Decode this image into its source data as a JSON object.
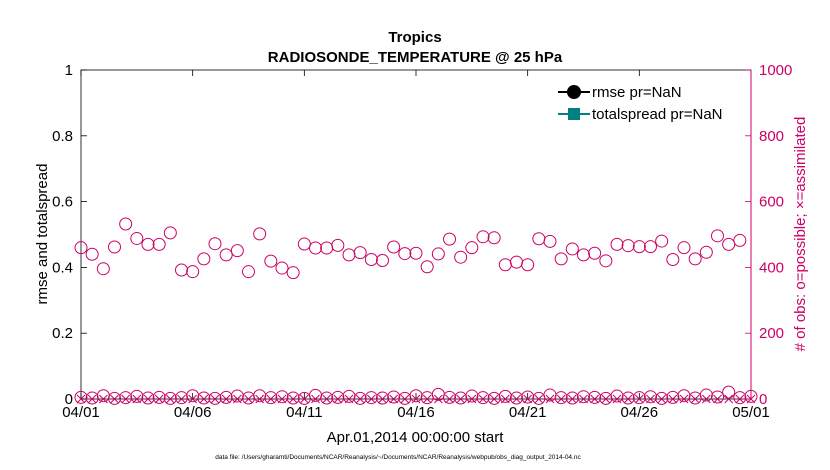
{
  "chart_data": {
    "type": "scatter",
    "title": "Tropics",
    "subtitle": "RADIOSONDE_TEMPERATURE @ 25 hPa",
    "xlabel": "Apr.01,2014 00:00:00 start",
    "ylabel_left": "rmse and totalspread",
    "ylabel_right": "# of obs: o=possible; ×=assimilated",
    "xlim": [
      0,
      30
    ],
    "ylim_left": [
      0,
      1
    ],
    "ylim_right": [
      0,
      1000
    ],
    "x_tick_values": [
      0,
      5,
      10,
      15,
      20,
      25,
      30
    ],
    "x_tick_labels": [
      "04/01",
      "04/06",
      "04/11",
      "04/16",
      "04/21",
      "04/26",
      "05/01"
    ],
    "y_left_ticks": [
      "0",
      "0.2",
      "0.4",
      "0.6",
      "0.8",
      "1"
    ],
    "y_right_ticks": [
      "0",
      "200",
      "400",
      "600",
      "800",
      "1000"
    ],
    "legend": {
      "position": "top-right",
      "entries": [
        "rmse pr=NaN",
        "totalspread pr=NaN"
      ]
    },
    "series": [
      {
        "name": "rmse pr=NaN",
        "axis": "left",
        "style": "line-circle",
        "color": "#000000",
        "values": []
      },
      {
        "name": "totalspread pr=NaN",
        "axis": "left",
        "style": "line-square",
        "color": "#008080",
        "values": []
      },
      {
        "name": "possible obs",
        "axis": "right",
        "style": "open-circle",
        "color": "#cc0066",
        "times": [
          0,
          0.5,
          1,
          1.5,
          2,
          2.5,
          3,
          3.5,
          4,
          4.5,
          5,
          5.5,
          6,
          6.5,
          7,
          7.5,
          8,
          8.5,
          9,
          9.5,
          10,
          10.5,
          11,
          11.5,
          12,
          12.5,
          13,
          13.5,
          14,
          14.5,
          15,
          15.5,
          16,
          16.5,
          17,
          17.5,
          18,
          18.5,
          19,
          19.5,
          20,
          20.5,
          21,
          21.5,
          22,
          22.5,
          23,
          23.5,
          24,
          24.5,
          25,
          25.5,
          26,
          26.5,
          27,
          27.5,
          28,
          28.5,
          29,
          29.5
        ],
        "values": [
          460,
          440,
          396,
          462,
          532,
          488,
          470,
          470,
          505,
          392,
          387,
          426,
          472,
          438,
          451,
          387,
          502,
          419,
          398,
          384,
          471,
          459,
          459,
          467,
          438,
          445,
          424,
          421,
          462,
          442,
          443,
          402,
          441,
          486,
          431,
          460,
          493,
          490,
          408,
          416,
          408,
          487,
          479,
          426,
          456,
          438,
          443,
          420,
          470,
          466,
          463,
          463,
          480,
          424,
          460,
          426,
          446,
          496,
          470,
          482
        ],
        "near_zero_times": [
          0,
          0.5,
          1,
          1.5,
          2,
          2.5,
          3,
          3.5,
          4,
          4.5,
          5,
          5.5,
          6,
          6.5,
          7,
          7.5,
          8,
          8.5,
          9,
          9.5,
          10,
          10.5,
          11,
          11.5,
          12,
          12.5,
          13,
          13.5,
          14,
          14.5,
          15,
          15.5,
          16,
          16.5,
          17,
          17.5,
          18,
          18.5,
          19,
          19.5,
          20,
          20.5,
          21,
          21.5,
          22,
          22.5,
          23,
          23.5,
          24,
          24.5,
          25,
          25.5,
          26,
          26.5,
          27,
          27.5,
          28,
          28.5,
          29,
          29.5,
          30
        ],
        "near_zero_values": [
          5,
          3,
          10,
          2,
          4,
          8,
          3,
          5,
          2,
          4,
          10,
          3,
          2,
          5,
          9,
          3,
          10,
          4,
          7,
          3,
          2,
          11,
          3,
          5,
          8,
          2,
          4,
          3,
          6,
          2,
          10,
          4,
          14,
          5,
          3,
          9,
          4,
          2,
          8,
          3,
          6,
          2,
          12,
          4,
          3,
          7,
          5,
          2,
          9,
          3,
          4,
          7,
          2,
          5,
          10,
          3,
          12,
          6,
          21,
          4,
          8
        ]
      },
      {
        "name": "assimilated obs",
        "axis": "right",
        "style": "cross",
        "color": "#cc0066",
        "times": [
          0,
          0.5,
          1,
          1.5,
          2,
          2.5,
          3,
          3.5,
          4,
          4.5,
          5,
          5.5,
          6,
          6.5,
          7,
          7.5,
          8,
          8.5,
          9,
          9.5,
          10,
          10.5,
          11,
          11.5,
          12,
          12.5,
          13,
          13.5,
          14,
          14.5,
          15,
          15.5,
          16,
          16.5,
          17,
          17.5,
          18,
          18.5,
          19,
          19.5,
          20,
          20.5,
          21,
          21.5,
          22,
          22.5,
          23,
          23.5,
          24,
          24.5,
          25,
          25.5,
          26,
          26.5,
          27,
          27.5,
          28,
          28.5,
          29,
          29.5,
          30
        ],
        "values": [
          0,
          0,
          0,
          0,
          0,
          0,
          0,
          0,
          0,
          0,
          0,
          0,
          0,
          0,
          0,
          0,
          0,
          0,
          0,
          0,
          0,
          0,
          0,
          0,
          0,
          0,
          0,
          0,
          0,
          0,
          0,
          0,
          0,
          0,
          0,
          0,
          0,
          0,
          0,
          0,
          0,
          0,
          0,
          0,
          0,
          0,
          0,
          0,
          0,
          0,
          0,
          0,
          0,
          0,
          0,
          0,
          0,
          0,
          0,
          0,
          0
        ]
      }
    ],
    "footnote": "data file: /Users/gharamti/Documents/NCAR/Reanalysis/~/Documents/NCAR/Reanalysis/webpub/obs_diag_output_2014-04.nc"
  },
  "colors": {
    "left_axis": "#000000",
    "right_axis": "#cc0066",
    "rmse": "#000000",
    "spread": "#008080"
  }
}
